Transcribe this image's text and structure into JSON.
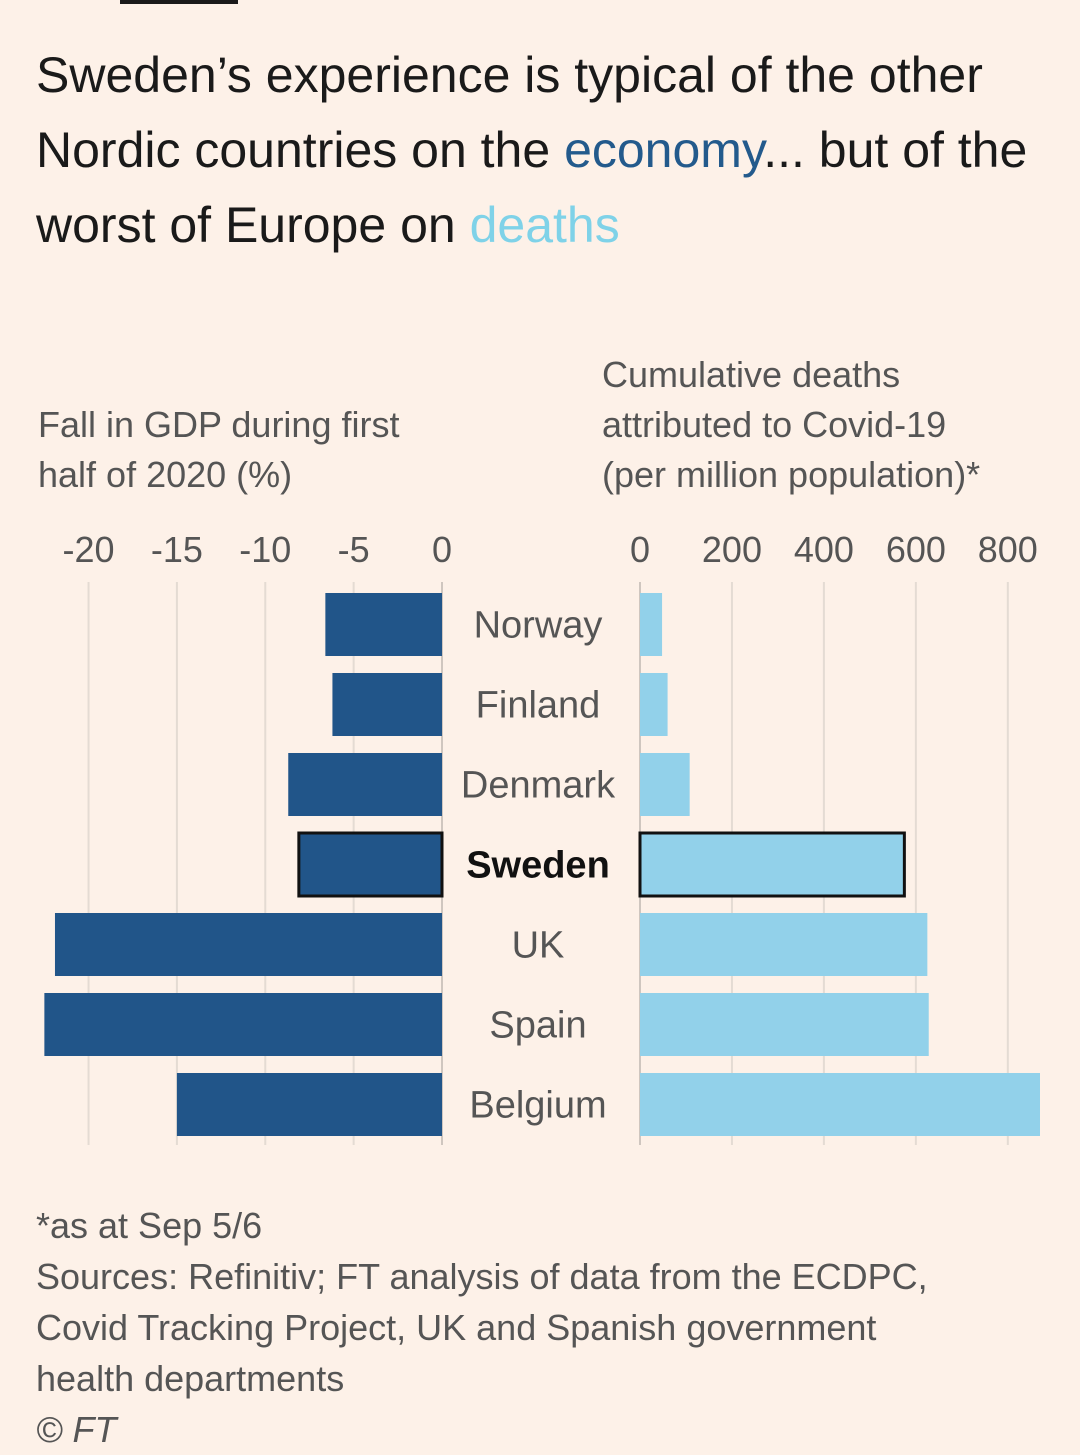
{
  "title": {
    "part1": "Sweden’s experience is typical of the other Nordic countries on the ",
    "economy": "economy",
    "part2": "... but of the worst of Europe on ",
    "deaths": "deaths"
  },
  "footer": {
    "note": "*as at Sep 5/6",
    "sources_line1": "Sources: Refinitiv; FT analysis of data from the ECDPC,",
    "sources_line2": "Covid Tracking Project, UK and Spanish government",
    "sources_line3": "health departments",
    "copyright": "© FT"
  },
  "colors": {
    "economy": "#235a8c",
    "deaths": "#7fd2e8",
    "gdp_bar": "#215589",
    "deaths_bar": "#92d1ea",
    "background": "#fdf1e8"
  },
  "chart_data": [
    {
      "type": "bar",
      "orientation": "horizontal",
      "title_line1": "Fall in GDP during first",
      "title_line2": "half of 2020 (%)",
      "categories": [
        "Norway",
        "Finland",
        "Denmark",
        "Sweden",
        "UK",
        "Spain",
        "Belgium"
      ],
      "highlight": "Sweden",
      "values": [
        -6.6,
        -6.2,
        -8.7,
        -8.1,
        -21.9,
        -22.5,
        -15.0
      ],
      "xlim": [
        -23.2,
        0
      ],
      "ticks": [
        -20,
        -15,
        -10,
        -5,
        0
      ],
      "tick_labels": [
        "-20",
        "-15",
        "-10",
        "-5",
        "0"
      ],
      "grid": true
    },
    {
      "type": "bar",
      "orientation": "horizontal",
      "title_line1": "Cumulative deaths",
      "title_line2": "attributed to Covid-19",
      "title_line3": "(per million population)*",
      "categories": [
        "Norway",
        "Finland",
        "Denmark",
        "Sweden",
        "UK",
        "Spain",
        "Belgium"
      ],
      "highlight": "Sweden",
      "values": [
        48,
        60,
        108,
        575,
        625,
        628,
        870
      ],
      "xlim": [
        0,
        870
      ],
      "ticks": [
        0,
        200,
        400,
        600,
        800
      ],
      "tick_labels": [
        "0",
        "200",
        "400",
        "600",
        "800"
      ],
      "grid": true
    }
  ]
}
